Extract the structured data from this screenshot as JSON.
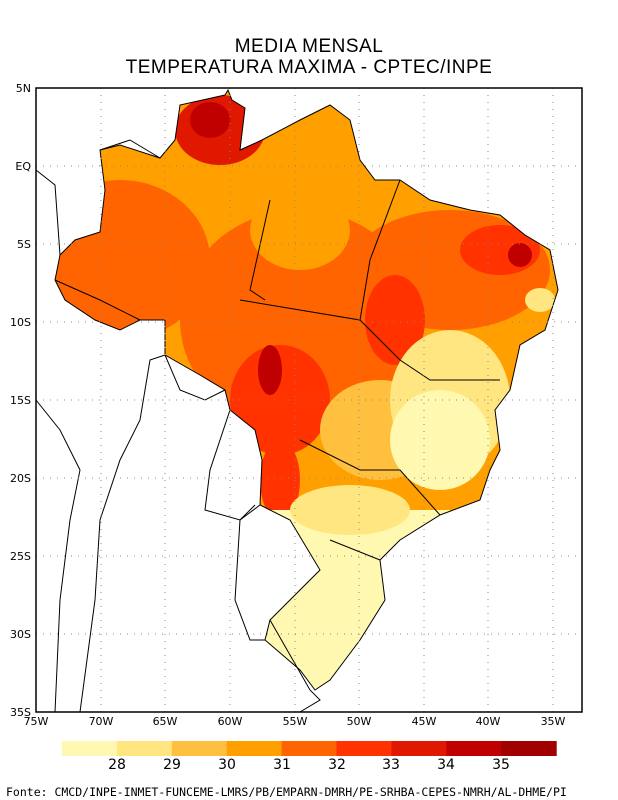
{
  "title": {
    "line1": "MEDIA MENSAL",
    "line2": "TEMPERATURA MAXIMA - CPTEC/INPE"
  },
  "axes": {
    "lat_labels": [
      "5N",
      "EQ",
      "5S",
      "10S",
      "15S",
      "20S",
      "25S",
      "30S",
      "35S"
    ],
    "lon_labels": [
      "75W",
      "70W",
      "65W",
      "60W",
      "55W",
      "50W",
      "45W",
      "40W",
      "35W"
    ]
  },
  "colorbar": {
    "labels": [
      "28",
      "29",
      "30",
      "31",
      "32",
      "33",
      "34",
      "35"
    ],
    "colors": [
      "#fff8b0",
      "#ffe680",
      "#ffc040",
      "#ffa000",
      "#ff6400",
      "#ff3200",
      "#e01800",
      "#c00000",
      "#a00000"
    ]
  },
  "footer": "Fonte: CMCD/INPE-INMET-FUNCEME-LMRS/PB/EMPARN-DMRH/PE-SRHBA-CEPES-NMRH/AL-DHME/PI"
}
